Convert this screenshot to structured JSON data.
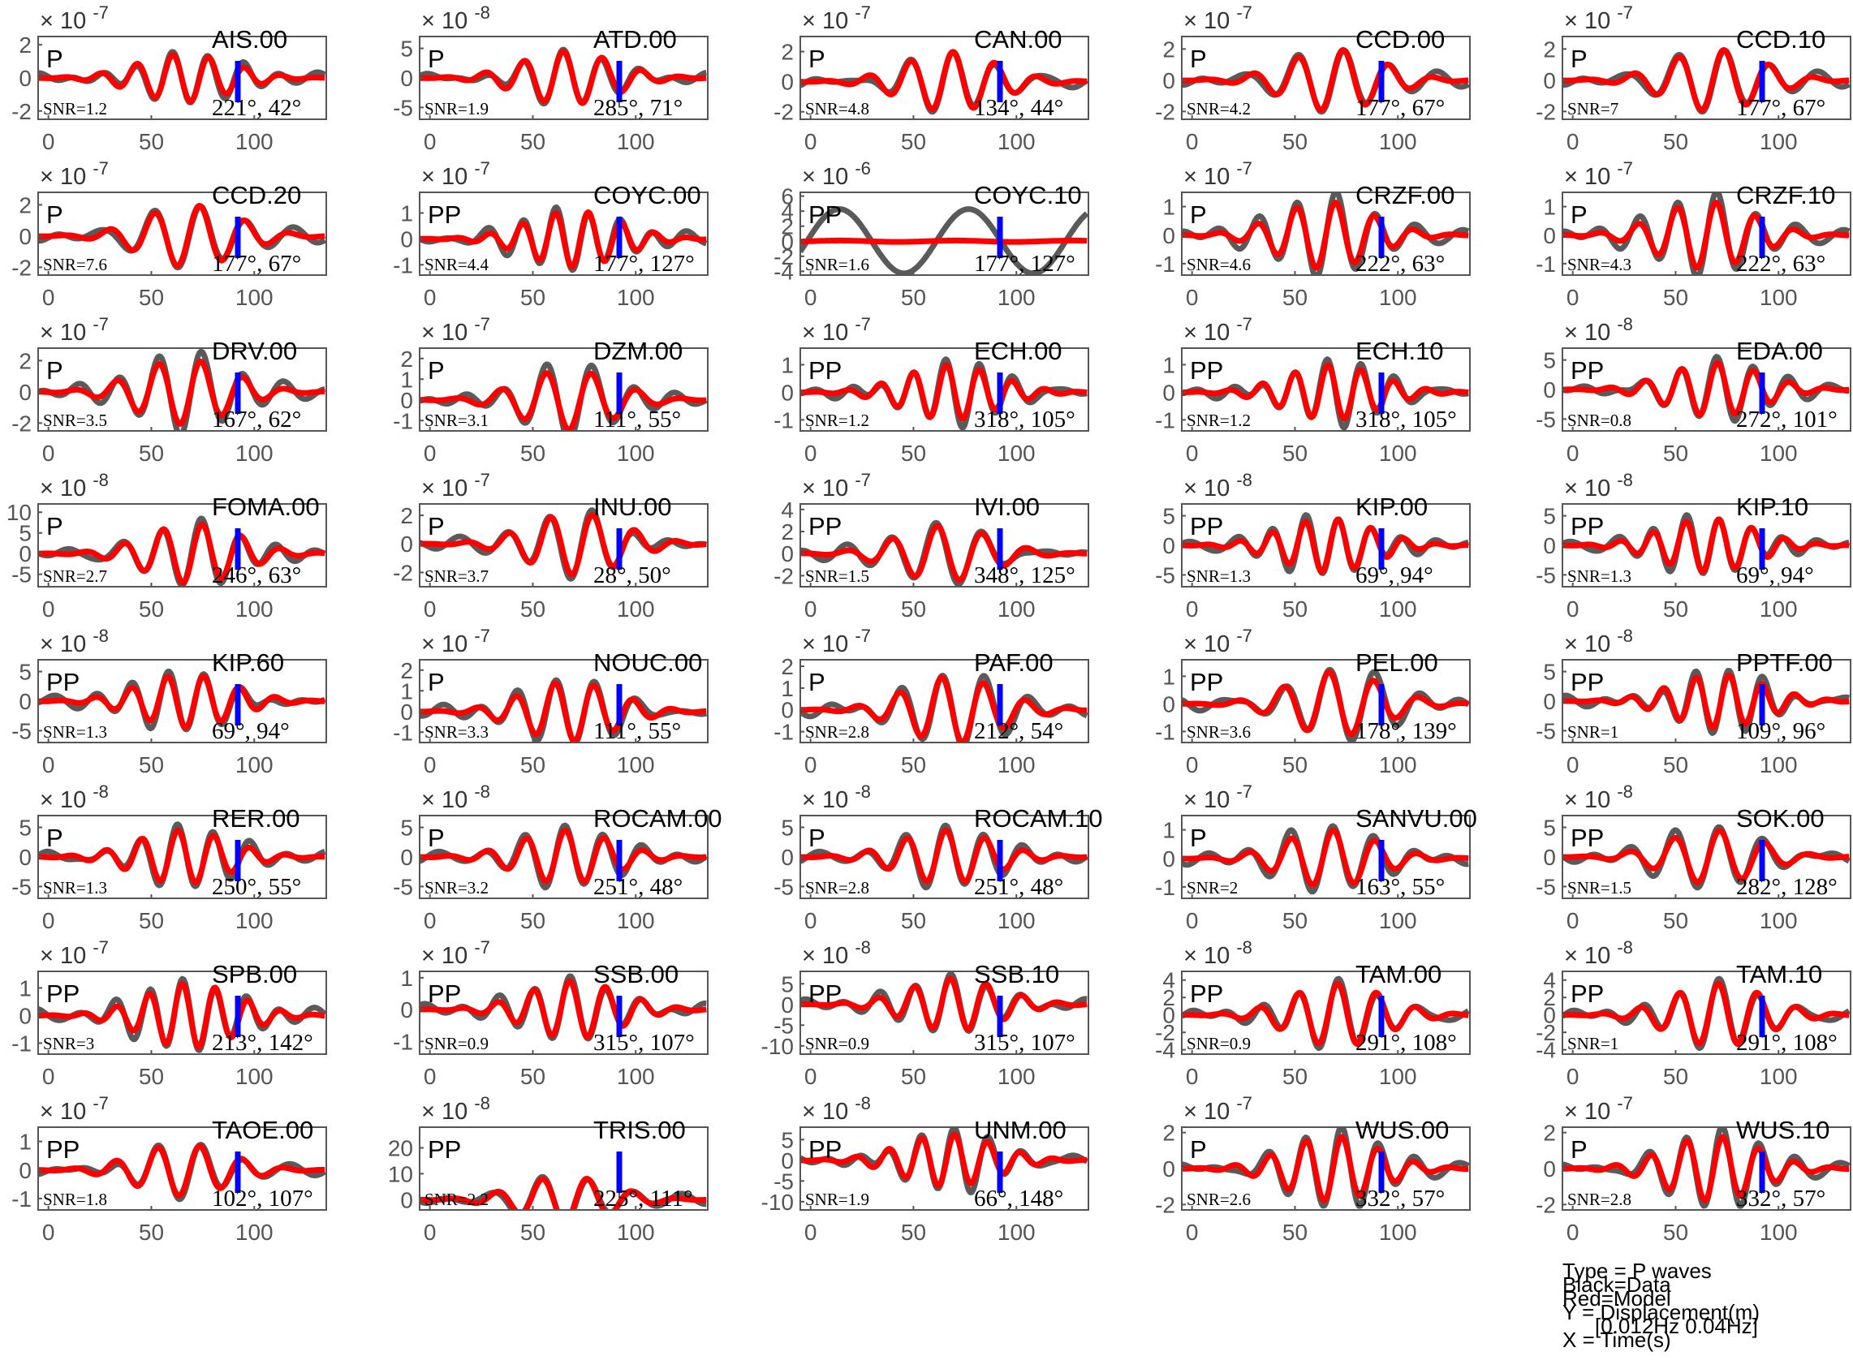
{
  "chart_data": {
    "type": "line",
    "x_ticks": [
      0,
      50,
      100
    ],
    "x_range": [
      -5,
      135
    ],
    "legend": {
      "lines": [
        "Type = P waves",
        "Black=Data",
        "Red=Model",
        "Y = Displacement(m)",
        "[0.012Hz 0.04Hz]",
        "X = Time(s)"
      ],
      "placement": "bottom-right"
    },
    "colors": {
      "data": "#5a5a5a",
      "model": "#ff0000",
      "marker": "#0000ff"
    },
    "panels": [
      {
        "station": "AIS.00",
        "phase": "P",
        "snr": "SNR=1.2",
        "az": "221°, 42°",
        "exp": "× 10 -7",
        "ymin": -2.5,
        "ymax": 2.5,
        "yticks": [
          "2",
          "0",
          "-2"
        ],
        "yvals": [
          2,
          0,
          -2
        ],
        "amp": 1.6,
        "seed": 1
      },
      {
        "station": "ATD.00",
        "phase": "P",
        "snr": "SNR=1.9",
        "az": "285°, 71°",
        "exp": "× 10 -8",
        "ymin": -7,
        "ymax": 7,
        "yticks": [
          "5",
          "0",
          "-5"
        ],
        "yvals": [
          5,
          0,
          -5
        ],
        "amp": 5,
        "seed": 2
      },
      {
        "station": "CAN.00",
        "phase": "P",
        "snr": "SNR=4.8",
        "az": "134°, 44°",
        "exp": "× 10 -7",
        "ymin": -2.5,
        "ymax": 3,
        "yticks": [
          "2",
          "0",
          "-2"
        ],
        "yvals": [
          2,
          0,
          -2
        ],
        "amp": 2.2,
        "seed": 3
      },
      {
        "station": "CCD.00",
        "phase": "P",
        "snr": "SNR=4.2",
        "az": "177°, 67°",
        "exp": "× 10 -7",
        "ymin": -2.5,
        "ymax": 2.8,
        "yticks": [
          "2",
          "0",
          "-2"
        ],
        "yvals": [
          2,
          0,
          -2
        ],
        "amp": 2.2,
        "seed": 4
      },
      {
        "station": "CCD.10",
        "phase": "P",
        "snr": "SNR=7",
        "az": "177°, 67°",
        "exp": "× 10 -7",
        "ymin": -2.5,
        "ymax": 2.8,
        "yticks": [
          "2",
          "0",
          "-2"
        ],
        "yvals": [
          2,
          0,
          -2
        ],
        "amp": 2.2,
        "seed": 4
      },
      {
        "station": "CCD.20",
        "phase": "P",
        "snr": "SNR=7.6",
        "az": "177°, 67°",
        "exp": "× 10 -7",
        "ymin": -2.5,
        "ymax": 2.8,
        "yticks": [
          "2",
          "0",
          "-2"
        ],
        "yvals": [
          2,
          0,
          -2
        ],
        "amp": 2.2,
        "seed": 4
      },
      {
        "station": "COYC.00",
        "phase": "PP",
        "snr": "SNR=4.4",
        "az": "177°, 127°",
        "exp": "× 10 -7",
        "ymin": -1.4,
        "ymax": 1.8,
        "yticks": [
          "1",
          "0",
          "-1"
        ],
        "yvals": [
          1,
          0,
          -1
        ],
        "amp": 1.2,
        "seed": 5
      },
      {
        "station": "COYC.10",
        "phase": "PP",
        "snr": "SNR=1.6",
        "az": "177°, 127°",
        "exp": "× 10 -6",
        "ymin": -4.5,
        "ymax": 6.5,
        "yticks": [
          "6",
          "4",
          "2",
          "0",
          "-2",
          "-4"
        ],
        "yvals": [
          6,
          4,
          2,
          0,
          -2,
          -4
        ],
        "amp": 4.5,
        "seed": 6,
        "flat": true
      },
      {
        "station": "CRZF.00",
        "phase": "P",
        "snr": "SNR=4.6",
        "az": "222°, 63°",
        "exp": "× 10 -7",
        "ymin": -1.4,
        "ymax": 1.5,
        "yticks": [
          "1",
          "0",
          "-1"
        ],
        "yvals": [
          1,
          0,
          -1
        ],
        "amp": 1.3,
        "seed": 7
      },
      {
        "station": "CRZF.10",
        "phase": "P",
        "snr": "SNR=4.3",
        "az": "222°, 63°",
        "exp": "× 10 -7",
        "ymin": -1.4,
        "ymax": 1.5,
        "yticks": [
          "1",
          "0",
          "-1"
        ],
        "yvals": [
          1,
          0,
          -1
        ],
        "amp": 1.3,
        "seed": 7
      },
      {
        "station": "DRV.00",
        "phase": "P",
        "snr": "SNR=3.5",
        "az": "167°, 62°",
        "exp": "× 10 -7",
        "ymin": -2.5,
        "ymax": 2.8,
        "yticks": [
          "2",
          "0",
          "-2"
        ],
        "yvals": [
          2,
          0,
          -2
        ],
        "amp": 2.3,
        "seed": 8
      },
      {
        "station": "DZM.00",
        "phase": "P",
        "snr": "SNR=3.1",
        "az": "111°, 55°",
        "exp": "× 10 -7",
        "ymin": -1.5,
        "ymax": 2.5,
        "yticks": [
          "2",
          "1",
          "0",
          "-1"
        ],
        "yvals": [
          2,
          1,
          0,
          -1
        ],
        "amp": 1.6,
        "seed": 9
      },
      {
        "station": "ECH.00",
        "phase": "PP",
        "snr": "SNR=1.2",
        "az": "318°, 105°",
        "exp": "× 10 -7",
        "ymin": -1.4,
        "ymax": 1.6,
        "yticks": [
          "1",
          "0",
          "-1"
        ],
        "yvals": [
          1,
          0,
          -1
        ],
        "amp": 1.1,
        "seed": 10
      },
      {
        "station": "ECH.10",
        "phase": "PP",
        "snr": "SNR=1.2",
        "az": "318°, 105°",
        "exp": "× 10 -7",
        "ymin": -1.4,
        "ymax": 1.6,
        "yticks": [
          "1",
          "0",
          "-1"
        ],
        "yvals": [
          1,
          0,
          -1
        ],
        "amp": 1.1,
        "seed": 10
      },
      {
        "station": "EDA.00",
        "phase": "PP",
        "snr": "SNR=0.8",
        "az": "272°, 101°",
        "exp": "× 10 -8",
        "ymin": -7,
        "ymax": 7,
        "yticks": [
          "5",
          "0",
          "-5"
        ],
        "yvals": [
          5,
          0,
          -5
        ],
        "amp": 5,
        "seed": 11
      },
      {
        "station": "FOMA.00",
        "phase": "P",
        "snr": "SNR=2.7",
        "az": "246°, 63°",
        "exp": "× 10 -8",
        "ymin": -8,
        "ymax": 12,
        "yticks": [
          "10",
          "5",
          "0",
          "-5"
        ],
        "yvals": [
          10,
          5,
          0,
          -5
        ],
        "amp": 8,
        "seed": 12
      },
      {
        "station": "INU.00",
        "phase": "P",
        "snr": "SNR=3.7",
        "az": "28°, 50°",
        "exp": "× 10 -7",
        "ymin": -3,
        "ymax": 2.8,
        "yticks": [
          "2",
          "0",
          "-2"
        ],
        "yvals": [
          2,
          0,
          -2
        ],
        "amp": 2.4,
        "seed": 13
      },
      {
        "station": "IVI.00",
        "phase": "PP",
        "snr": "SNR=1.5",
        "az": "348°, 125°",
        "exp": "× 10 -7",
        "ymin": -3,
        "ymax": 4.5,
        "yticks": [
          "4",
          "2",
          "0",
          "-2"
        ],
        "yvals": [
          4,
          2,
          0,
          -2
        ],
        "amp": 2.8,
        "seed": 14
      },
      {
        "station": "KIP.00",
        "phase": "PP",
        "snr": "SNR=1.3",
        "az": "69°, 94°",
        "exp": "× 10 -8",
        "ymin": -7,
        "ymax": 7,
        "yticks": [
          "5",
          "0",
          "-5"
        ],
        "yvals": [
          5,
          0,
          -5
        ],
        "amp": 5,
        "seed": 15
      },
      {
        "station": "KIP.10",
        "phase": "PP",
        "snr": "SNR=1.3",
        "az": "69°, 94°",
        "exp": "× 10 -8",
        "ymin": -7,
        "ymax": 7,
        "yticks": [
          "5",
          "0",
          "-5"
        ],
        "yvals": [
          5,
          0,
          -5
        ],
        "amp": 5,
        "seed": 15
      },
      {
        "station": "KIP.60",
        "phase": "PP",
        "snr": "SNR=1.3",
        "az": "69°, 94°",
        "exp": "× 10 -8",
        "ymin": -7,
        "ymax": 7,
        "yticks": [
          "5",
          "0",
          "-5"
        ],
        "yvals": [
          5,
          0,
          -5
        ],
        "amp": 5,
        "seed": 16
      },
      {
        "station": "NOUC.00",
        "phase": "P",
        "snr": "SNR=3.3",
        "az": "111°, 55°",
        "exp": "× 10 -7",
        "ymin": -1.5,
        "ymax": 2.5,
        "yticks": [
          "2",
          "1",
          "0",
          "-1"
        ],
        "yvals": [
          2,
          1,
          0,
          -1
        ],
        "amp": 1.6,
        "seed": 17
      },
      {
        "station": "PAF.00",
        "phase": "P",
        "snr": "SNR=2.8",
        "az": "212°, 54°",
        "exp": "× 10 -7",
        "ymin": -1.5,
        "ymax": 2.3,
        "yticks": [
          "2",
          "1",
          "0",
          "-1"
        ],
        "yvals": [
          2,
          1,
          0,
          -1
        ],
        "amp": 1.7,
        "seed": 18
      },
      {
        "station": "PEL.00",
        "phase": "PP",
        "snr": "SNR=3.6",
        "az": "178°, 139°",
        "exp": "× 10 -7",
        "ymin": -1.4,
        "ymax": 1.6,
        "yticks": [
          "1",
          "0",
          "-1"
        ],
        "yvals": [
          1,
          0,
          -1
        ],
        "amp": 1.3,
        "seed": 19
      },
      {
        "station": "PPTF.00",
        "phase": "PP",
        "snr": "SNR=1",
        "az": "109°, 96°",
        "exp": "× 10 -8",
        "ymin": -7,
        "ymax": 7,
        "yticks": [
          "5",
          "0",
          "-5"
        ],
        "yvals": [
          5,
          0,
          -5
        ],
        "amp": 5,
        "seed": 20
      },
      {
        "station": "RER.00",
        "phase": "P",
        "snr": "SNR=1.3",
        "az": "250°, 55°",
        "exp": "× 10 -8",
        "ymin": -7,
        "ymax": 7,
        "yticks": [
          "5",
          "0",
          "-5"
        ],
        "yvals": [
          5,
          0,
          -5
        ],
        "amp": 5,
        "seed": 21
      },
      {
        "station": "ROCAM.00",
        "phase": "P",
        "snr": "SNR=3.2",
        "az": "251°, 48°",
        "exp": "× 10 -8",
        "ymin": -7,
        "ymax": 7,
        "yticks": [
          "5",
          "0",
          "-5"
        ],
        "yvals": [
          5,
          0,
          -5
        ],
        "amp": 5,
        "seed": 22
      },
      {
        "station": "ROCAM.10",
        "phase": "P",
        "snr": "SNR=2.8",
        "az": "251°, 48°",
        "exp": "× 10 -8",
        "ymin": -7,
        "ymax": 7,
        "yticks": [
          "5",
          "0",
          "-5"
        ],
        "yvals": [
          5,
          0,
          -5
        ],
        "amp": 5,
        "seed": 22
      },
      {
        "station": "SANVU.00",
        "phase": "P",
        "snr": "SNR=2",
        "az": "163°, 55°",
        "exp": "× 10 -7",
        "ymin": -1.4,
        "ymax": 1.5,
        "yticks": [
          "1",
          "0",
          "-1"
        ],
        "yvals": [
          1,
          0,
          -1
        ],
        "amp": 1.1,
        "seed": 23
      },
      {
        "station": "SOK.00",
        "phase": "PP",
        "snr": "SNR=1.5",
        "az": "282°, 128°",
        "exp": "× 10 -8",
        "ymin": -7,
        "ymax": 7,
        "yticks": [
          "5",
          "0",
          "-5"
        ],
        "yvals": [
          5,
          0,
          -5
        ],
        "amp": 5,
        "seed": 24
      },
      {
        "station": "SPB.00",
        "phase": "PP",
        "snr": "SNR=3",
        "az": "213°, 142°",
        "exp": "× 10 -7",
        "ymin": -1.4,
        "ymax": 1.6,
        "yticks": [
          "1",
          "0",
          "-1"
        ],
        "yvals": [
          1,
          0,
          -1
        ],
        "amp": 1.3,
        "seed": 25
      },
      {
        "station": "SSB.00",
        "phase": "PP",
        "snr": "SNR=0.9",
        "az": "315°, 107°",
        "exp": "× 10 -7",
        "ymin": -1.4,
        "ymax": 1.2,
        "yticks": [
          "1",
          "0",
          "-1"
        ],
        "yvals": [
          1,
          0,
          -1
        ],
        "amp": 1.0,
        "seed": 26
      },
      {
        "station": "SSB.10",
        "phase": "PP",
        "snr": "SNR=0.9",
        "az": "315°, 107°",
        "exp": "× 10 -8",
        "ymin": -12,
        "ymax": 8,
        "yticks": [
          "5",
          "0",
          "-5",
          "-10"
        ],
        "yvals": [
          5,
          0,
          -5,
          -10
        ],
        "amp": 7,
        "seed": 26
      },
      {
        "station": "TAM.00",
        "phase": "PP",
        "snr": "SNR=0.9",
        "az": "291°, 108°",
        "exp": "× 10 -8",
        "ymin": -4.5,
        "ymax": 5,
        "yticks": [
          "4",
          "2",
          "0",
          "-2",
          "-4"
        ],
        "yvals": [
          4,
          2,
          0,
          -2,
          -4
        ],
        "amp": 4,
        "seed": 27
      },
      {
        "station": "TAM.10",
        "phase": "PP",
        "snr": "SNR=1",
        "az": "291°, 108°",
        "exp": "× 10 -8",
        "ymin": -4.5,
        "ymax": 5,
        "yticks": [
          "4",
          "2",
          "0",
          "-2",
          "-4"
        ],
        "yvals": [
          4,
          2,
          0,
          -2,
          -4
        ],
        "amp": 4,
        "seed": 27
      },
      {
        "station": "TAOE.00",
        "phase": "PP",
        "snr": "SNR=1.8",
        "az": "102°, 107°",
        "exp": "× 10 -7",
        "ymin": -1.4,
        "ymax": 1.5,
        "yticks": [
          "1",
          "0",
          "-1"
        ],
        "yvals": [
          1,
          0,
          -1
        ],
        "amp": 1.0,
        "seed": 28
      },
      {
        "station": "TRIS.00",
        "phase": "PP",
        "snr": "SNR=2.2",
        "az": "225°, 111°",
        "exp": "× 10 -8",
        "ymin": -4,
        "ymax": 28,
        "yticks": [
          "20",
          "10",
          "0"
        ],
        "yvals": [
          20,
          10,
          0
        ],
        "amp": 10,
        "seed": 29
      },
      {
        "station": "UNM.00",
        "phase": "PP",
        "snr": "SNR=1.9",
        "az": "66°, 148°",
        "exp": "× 10 -8",
        "ymin": -12,
        "ymax": 8,
        "yticks": [
          "5",
          "0",
          "-5",
          "-10"
        ],
        "yvals": [
          5,
          0,
          -5,
          -10
        ],
        "amp": 7,
        "seed": 30
      },
      {
        "station": "WUS.00",
        "phase": "P",
        "snr": "SNR=2.6",
        "az": "332°, 57°",
        "exp": "× 10 -7",
        "ymin": -2.3,
        "ymax": 2.3,
        "yticks": [
          "2",
          "0",
          "-2"
        ],
        "yvals": [
          2,
          0,
          -2
        ],
        "amp": 2.0,
        "seed": 31
      },
      {
        "station": "WUS.10",
        "phase": "P",
        "snr": "SNR=2.8",
        "az": "332°, 57°",
        "exp": "× 10 -7",
        "ymin": -2.3,
        "ymax": 2.3,
        "yticks": [
          "2",
          "0",
          "-2"
        ],
        "yvals": [
          2,
          0,
          -2
        ],
        "amp": 2.0,
        "seed": 31
      }
    ]
  }
}
